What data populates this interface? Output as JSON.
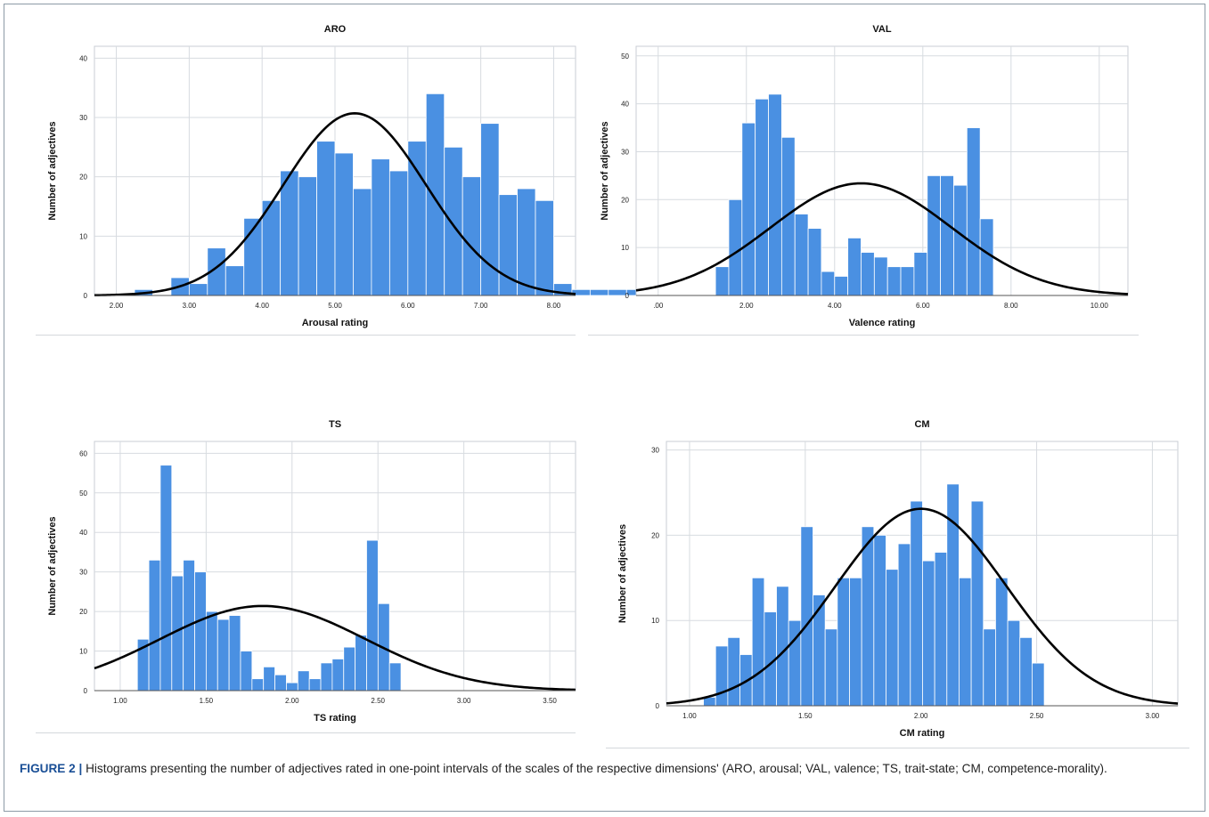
{
  "figure": {
    "label": "FIGURE 2 |",
    "caption": "Histograms presenting the number of adjectives rated in one-point intervals of the scales of the respective dimensions' (ARO, arousal; VAL, valence; TS, trait-state; CM, competence-morality)."
  },
  "colors": {
    "bar": "#4a90e2",
    "bar_edge": "#ffffff",
    "curve": "#000000",
    "grid": "#d7dbe0"
  },
  "chart_data": [
    {
      "type": "bar",
      "title": "ARO",
      "xlabel": "Arousal rating",
      "ylabel": "Number of adjectives",
      "xlim": [
        1.7,
        8.3
      ],
      "ylim": [
        0,
        42
      ],
      "xticks": [
        2,
        3,
        4,
        5,
        6,
        7,
        8
      ],
      "xtick_labels": [
        "2.00",
        "3.00",
        "4.00",
        "5.00",
        "6.00",
        "7.00",
        "8.00"
      ],
      "yticks": [
        0,
        10,
        20,
        30,
        40
      ],
      "bin_start": 2.25,
      "bin_width": 0.25,
      "values": [
        1,
        0,
        3,
        2,
        8,
        5,
        13,
        16,
        21,
        20,
        26,
        24,
        18,
        23,
        21,
        26,
        34,
        25,
        20,
        29,
        17,
        18,
        16,
        2,
        1,
        1,
        1,
        1
      ],
      "normal_curve": {
        "mean": 5.27,
        "peak": 30.7,
        "sd": 0.98
      },
      "grid": true
    },
    {
      "type": "bar",
      "title": "VAL",
      "xlabel": "Valence rating",
      "ylabel": "Number of adjectives",
      "xlim": [
        -0.5,
        10.65
      ],
      "ylim": [
        0,
        52
      ],
      "xticks": [
        0,
        2,
        4,
        6,
        8,
        10
      ],
      "xtick_labels": [
        ".00",
        "2.00",
        "4.00",
        "6.00",
        "8.00",
        "10.00"
      ],
      "yticks": [
        0,
        10,
        20,
        30,
        40,
        50
      ],
      "bin_start": 1.3,
      "bin_width": 0.3,
      "values": [
        6,
        20,
        36,
        41,
        42,
        33,
        17,
        14,
        5,
        4,
        12,
        9,
        8,
        6,
        6,
        9,
        25,
        25,
        23,
        35,
        16
      ],
      "normal_curve": {
        "mean": 4.6,
        "peak": 23.4,
        "sd": 2.05
      },
      "grid": true
    },
    {
      "type": "bar",
      "title": "TS",
      "xlabel": "TS rating",
      "ylabel": "Number of adjectives",
      "xlim": [
        0.85,
        3.65
      ],
      "ylim": [
        0,
        63
      ],
      "xticks": [
        1,
        1.5,
        2,
        2.5,
        3,
        3.5
      ],
      "xtick_labels": [
        "1.00",
        "1.50",
        "2.00",
        "2.50",
        "3.00",
        "3.50"
      ],
      "yticks": [
        0,
        10,
        20,
        30,
        40,
        50,
        60
      ],
      "bin_start": 1.1,
      "bin_width": 0.0667,
      "values": [
        13,
        33,
        57,
        29,
        33,
        30,
        20,
        18,
        19,
        10,
        3,
        6,
        4,
        2,
        5,
        3,
        7,
        8,
        11,
        14,
        38,
        22,
        7
      ],
      "normal_curve": {
        "mean": 1.83,
        "peak": 21.4,
        "sd": 0.6
      },
      "grid": true
    },
    {
      "type": "bar",
      "title": "CM",
      "xlabel": "CM rating",
      "ylabel": "Number of adjectives",
      "xlim": [
        0.9,
        3.11
      ],
      "ylim": [
        0,
        31
      ],
      "xticks": [
        1,
        1.5,
        2,
        2.5,
        3
      ],
      "xtick_labels": [
        "1.00",
        "1.50",
        "2.00",
        "2.50",
        "3.00"
      ],
      "yticks": [
        0,
        10,
        20,
        30
      ],
      "bin_start": 1.06,
      "bin_width": 0.0526,
      "values": [
        1,
        7,
        8,
        6,
        15,
        11,
        14,
        10,
        21,
        13,
        9,
        15,
        15,
        21,
        20,
        16,
        19,
        24,
        17,
        18,
        26,
        15,
        24,
        9,
        15,
        10,
        8,
        5
      ],
      "normal_curve": {
        "mean": 2.0,
        "peak": 23.1,
        "sd": 0.37
      },
      "grid": true
    }
  ]
}
